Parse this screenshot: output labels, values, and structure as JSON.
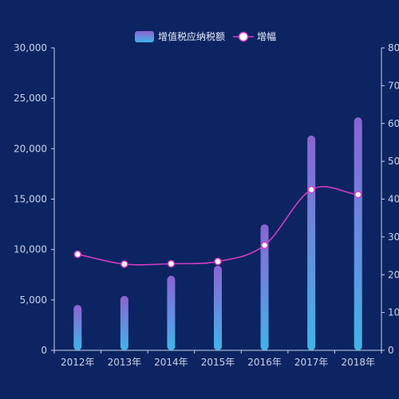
{
  "colors": {
    "background": "#0c2461",
    "axis": "#c9d3ea",
    "bar_top": "#8c63d2",
    "bar_bottom": "#41b4e8",
    "line": "#d63bc5",
    "marker_fill": "#ffffff"
  },
  "chart_data": {
    "type": "bar",
    "categories": [
      "2012年",
      "2013年",
      "2014年",
      "2015年",
      "2016年",
      "2017年",
      "2018年"
    ],
    "series": [
      {
        "name": "增值税应纳税额",
        "type": "bar",
        "axis": "left",
        "values": [
          4500,
          5400,
          7400,
          8400,
          12500,
          21300,
          23100
        ]
      },
      {
        "name": "增幅",
        "type": "line",
        "axis": "right",
        "smooth": true,
        "values": [
          25.4,
          22.8,
          22.9,
          23.5,
          27.8,
          42.5,
          41.2
        ]
      }
    ],
    "y_left": {
      "min": 0,
      "max": 30000,
      "ticks": [
        "0",
        "5,000",
        "10,000",
        "15,000",
        "20,000",
        "25,000",
        "30,000"
      ]
    },
    "y_right": {
      "min": 0,
      "max": 80,
      "ticks": [
        "0",
        "10",
        "20",
        "30",
        "40",
        "50",
        "60",
        "70",
        "80"
      ]
    },
    "legend_position": "top-center",
    "grid": false
  }
}
